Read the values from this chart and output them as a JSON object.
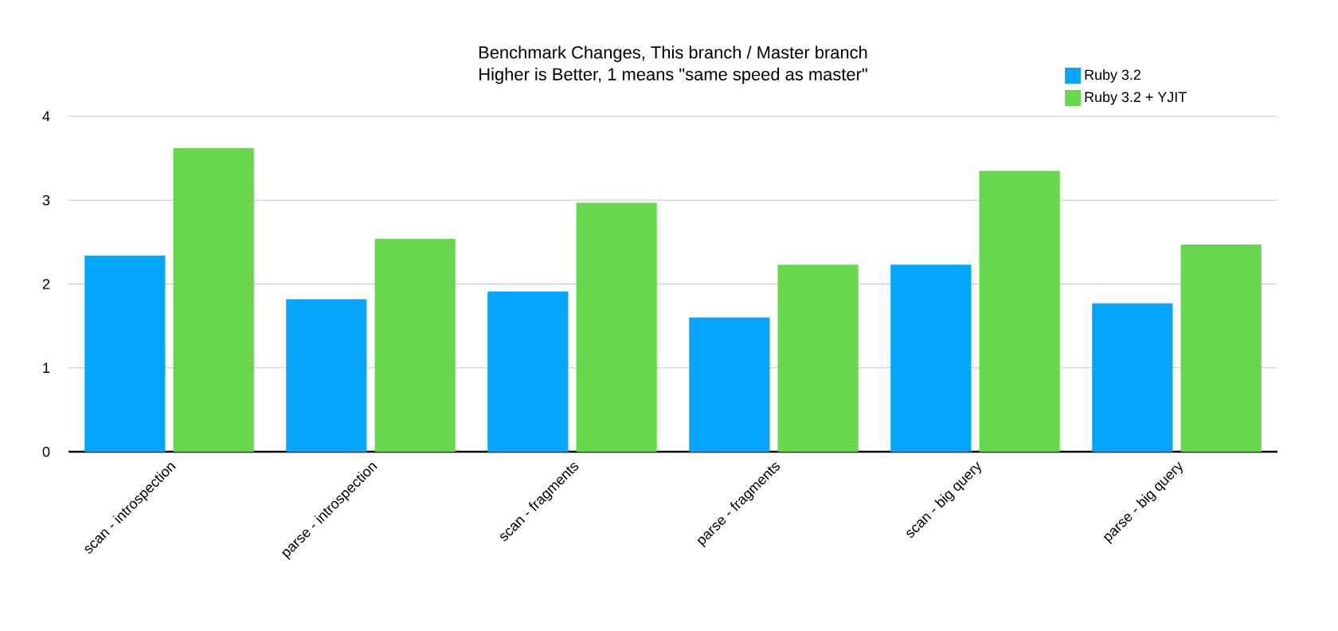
{
  "chart_data": {
    "type": "bar",
    "title": "Benchmark Changes, This branch / Master branch",
    "subtitle": "Higher is Better, 1 means \"same speed as master\"",
    "categories": [
      "scan - introspection",
      "parse - introspection",
      "scan - fragments",
      "parse - fragments",
      "scan - big query",
      "parse - big query"
    ],
    "series": [
      {
        "name": "Ruby 3.2",
        "color": "#04a5fa",
        "values": [
          2.34,
          1.82,
          1.91,
          1.6,
          2.23,
          1.77
        ]
      },
      {
        "name": "Ruby 3.2 + YJIT",
        "color": "#67d84c",
        "values": [
          3.62,
          2.54,
          2.97,
          2.23,
          3.35,
          2.47
        ]
      }
    ],
    "ylim": [
      0,
      4
    ],
    "yticks": [
      0,
      1,
      2,
      3,
      4
    ],
    "grid": "y",
    "legend": "top right"
  }
}
